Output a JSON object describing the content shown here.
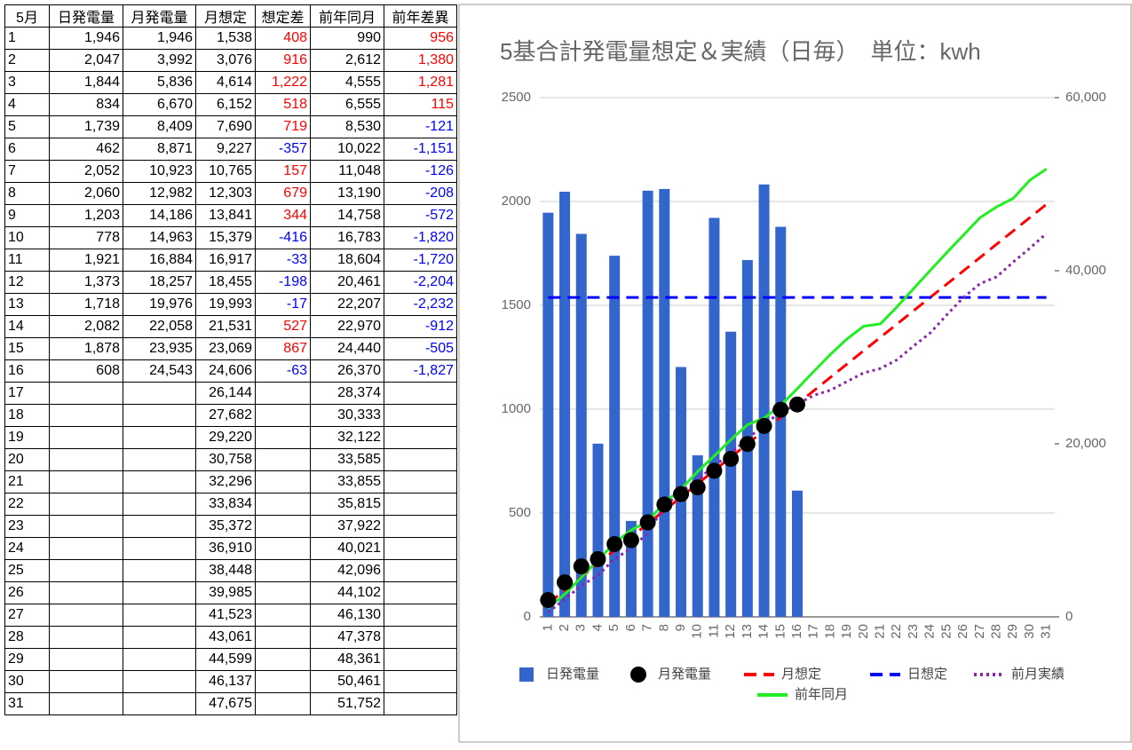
{
  "table": {
    "header": [
      "5月",
      "日発電量",
      "月発電量",
      "月想定",
      "想定差",
      "前年同月",
      "前年差異"
    ],
    "positive_color": "#ff0000",
    "negative_color": "#0000ff",
    "rows": [
      [
        "1",
        "1,946",
        "1,946",
        "1,538",
        "408",
        "990",
        "956"
      ],
      [
        "2",
        "2,047",
        "3,992",
        "3,076",
        "916",
        "2,612",
        "1,380"
      ],
      [
        "3",
        "1,844",
        "5,836",
        "4,614",
        "1,222",
        "4,555",
        "1,281"
      ],
      [
        "4",
        "834",
        "6,670",
        "6,152",
        "518",
        "6,555",
        "115"
      ],
      [
        "5",
        "1,739",
        "8,409",
        "7,690",
        "719",
        "8,530",
        "-121"
      ],
      [
        "6",
        "462",
        "8,871",
        "9,227",
        "-357",
        "10,022",
        "-1,151"
      ],
      [
        "7",
        "2,052",
        "10,923",
        "10,765",
        "157",
        "11,048",
        "-126"
      ],
      [
        "8",
        "2,060",
        "12,982",
        "12,303",
        "679",
        "13,190",
        "-208"
      ],
      [
        "9",
        "1,203",
        "14,186",
        "13,841",
        "344",
        "14,758",
        "-572"
      ],
      [
        "10",
        "778",
        "14,963",
        "15,379",
        "-416",
        "16,783",
        "-1,820"
      ],
      [
        "11",
        "1,921",
        "16,884",
        "16,917",
        "-33",
        "18,604",
        "-1,720"
      ],
      [
        "12",
        "1,373",
        "18,257",
        "18,455",
        "-198",
        "20,461",
        "-2,204"
      ],
      [
        "13",
        "1,718",
        "19,976",
        "19,993",
        "-17",
        "22,207",
        "-2,232"
      ],
      [
        "14",
        "2,082",
        "22,058",
        "21,531",
        "527",
        "22,970",
        "-912"
      ],
      [
        "15",
        "1,878",
        "23,935",
        "23,069",
        "867",
        "24,440",
        "-505"
      ],
      [
        "16",
        "608",
        "24,543",
        "24,606",
        "-63",
        "26,370",
        "-1,827"
      ],
      [
        "17",
        null,
        null,
        "26,144",
        null,
        "28,374",
        null
      ],
      [
        "18",
        null,
        null,
        "27,682",
        null,
        "30,333",
        null
      ],
      [
        "19",
        null,
        null,
        "29,220",
        null,
        "32,122",
        null
      ],
      [
        "20",
        null,
        null,
        "30,758",
        null,
        "33,585",
        null
      ],
      [
        "21",
        null,
        null,
        "32,296",
        null,
        "33,855",
        null
      ],
      [
        "22",
        null,
        null,
        "33,834",
        null,
        "35,815",
        null
      ],
      [
        "23",
        null,
        null,
        "35,372",
        null,
        "37,922",
        null
      ],
      [
        "24",
        null,
        null,
        "36,910",
        null,
        "40,021",
        null
      ],
      [
        "25",
        null,
        null,
        "38,448",
        null,
        "42,096",
        null
      ],
      [
        "26",
        null,
        null,
        "39,985",
        null,
        "44,102",
        null
      ],
      [
        "27",
        null,
        null,
        "41,523",
        null,
        "46,130",
        null
      ],
      [
        "28",
        null,
        null,
        "43,061",
        null,
        "47,378",
        null
      ],
      [
        "29",
        null,
        null,
        "44,599",
        null,
        "48,361",
        null
      ],
      [
        "30",
        null,
        null,
        "46,137",
        null,
        "50,461",
        null
      ],
      [
        "31",
        null,
        null,
        "47,675",
        null,
        "51,752",
        null
      ]
    ]
  },
  "chart_data": {
    "type": "combo",
    "title": "5基合計発電量想定＆実績（日毎）　単位：kwh",
    "categories": [
      "1",
      "2",
      "3",
      "4",
      "5",
      "6",
      "7",
      "8",
      "9",
      "10",
      "11",
      "12",
      "13",
      "14",
      "15",
      "16",
      "17",
      "18",
      "19",
      "20",
      "21",
      "22",
      "23",
      "24",
      "25",
      "26",
      "27",
      "28",
      "29",
      "30",
      "31"
    ],
    "ylim": [
      0,
      2500
    ],
    "yticks": [
      0,
      500,
      1000,
      1500,
      2000,
      2500
    ],
    "y2lim": [
      0,
      60000
    ],
    "y2ticks": [
      0,
      {
        "value": 20000,
        "label": "20,000"
      },
      {
        "value": 40000,
        "label": "40,000"
      },
      {
        "value": 60000,
        "label": "60,000"
      }
    ],
    "grid": true,
    "legend": "bottom",
    "series": [
      {
        "name": "日発電量",
        "type": "bar",
        "color": "#3366cc",
        "axis": "y",
        "values": [
          1946,
          2047,
          1844,
          834,
          1739,
          462,
          2052,
          2060,
          1203,
          778,
          1921,
          1373,
          1718,
          2082,
          1878,
          608,
          null,
          null,
          null,
          null,
          null,
          null,
          null,
          null,
          null,
          null,
          null,
          null,
          null,
          null,
          null
        ]
      },
      {
        "name": "月発電量",
        "type": "scatter",
        "color": "#000000",
        "axis": "y2",
        "values": [
          1946,
          3992,
          5836,
          6670,
          8409,
          8871,
          10923,
          12982,
          14186,
          14963,
          16884,
          18257,
          19976,
          22058,
          23935,
          24543,
          null,
          null,
          null,
          null,
          null,
          null,
          null,
          null,
          null,
          null,
          null,
          null,
          null,
          null,
          null
        ]
      },
      {
        "name": "月想定",
        "type": "line",
        "style": "dashed",
        "color": "#ff0000",
        "axis": "y2",
        "values": [
          1538,
          3076,
          4614,
          6152,
          7690,
          9227,
          10765,
          12303,
          13841,
          15379,
          16917,
          18455,
          19993,
          21531,
          23069,
          24606,
          26144,
          27682,
          29220,
          30758,
          32296,
          33834,
          35372,
          36910,
          38448,
          39985,
          41523,
          43061,
          44599,
          46137,
          47675
        ]
      },
      {
        "name": "日想定",
        "type": "line",
        "style": "dashed",
        "color": "#0000ff",
        "axis": "y",
        "values": [
          1538,
          1538,
          1538,
          1538,
          1538,
          1538,
          1538,
          1538,
          1538,
          1538,
          1538,
          1538,
          1538,
          1538,
          1538,
          1538,
          1538,
          1538,
          1538,
          1538,
          1538,
          1538,
          1538,
          1538,
          1538,
          1538,
          1538,
          1538,
          1538,
          1538,
          1538
        ]
      },
      {
        "name": "前月実績",
        "type": "line",
        "style": "dotted",
        "color": "#8e24aa",
        "axis": "y2",
        "values": [
          500,
          2050,
          3600,
          4800,
          6700,
          7900,
          9700,
          12800,
          14400,
          15900,
          17400,
          19000,
          20500,
          22300,
          23600,
          24600,
          25600,
          26200,
          27200,
          28200,
          28700,
          29700,
          31300,
          32800,
          34900,
          36900,
          38500,
          39300,
          41000,
          42600,
          44300
        ]
      },
      {
        "name": "前年同月",
        "type": "line",
        "style": "solid",
        "color": "#22ee22",
        "axis": "y2",
        "values": [
          990,
          2612,
          4555,
          6555,
          8530,
          10022,
          11048,
          13190,
          14758,
          16783,
          18604,
          20461,
          22207,
          22970,
          24440,
          26370,
          28374,
          30333,
          32122,
          33585,
          33855,
          35815,
          37922,
          40021,
          42096,
          44102,
          46130,
          47378,
          48361,
          50461,
          51752
        ]
      }
    ]
  }
}
